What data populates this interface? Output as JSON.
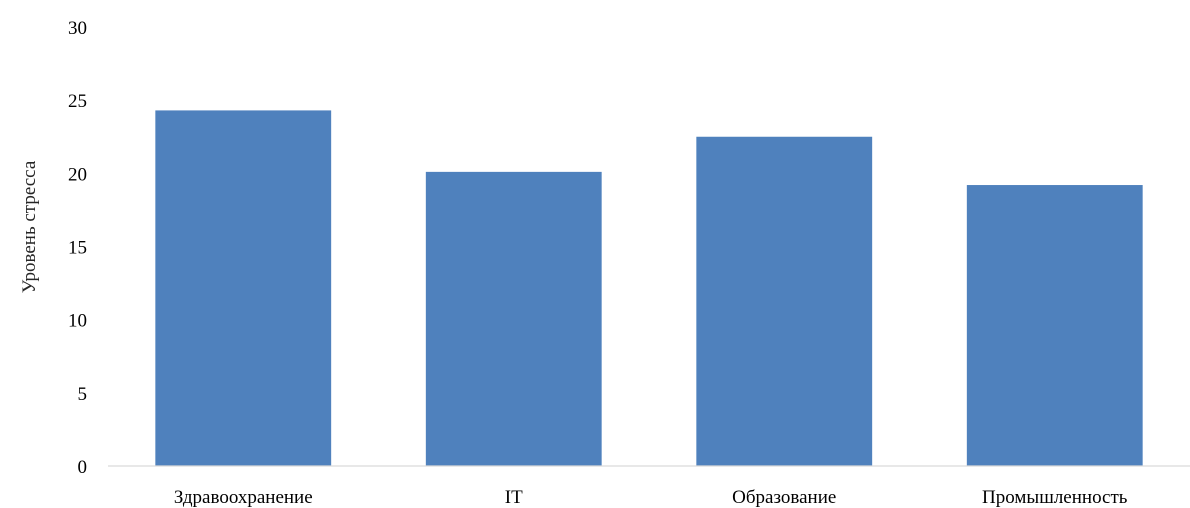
{
  "chart_data": {
    "type": "bar",
    "categories": [
      "Здравоохранение",
      "IT",
      "Образование",
      "Промышленность"
    ],
    "values": [
      24.3,
      20.1,
      22.5,
      19.2
    ],
    "xlabel": "",
    "ylabel": "Уровень стресса",
    "ylim": [
      0,
      30
    ],
    "yticks": [
      "0",
      "5",
      "10",
      "15",
      "20",
      "25",
      "30"
    ],
    "grid": false,
    "bar_color": "#4f81bd",
    "axis_color": "#d9d9d9"
  }
}
